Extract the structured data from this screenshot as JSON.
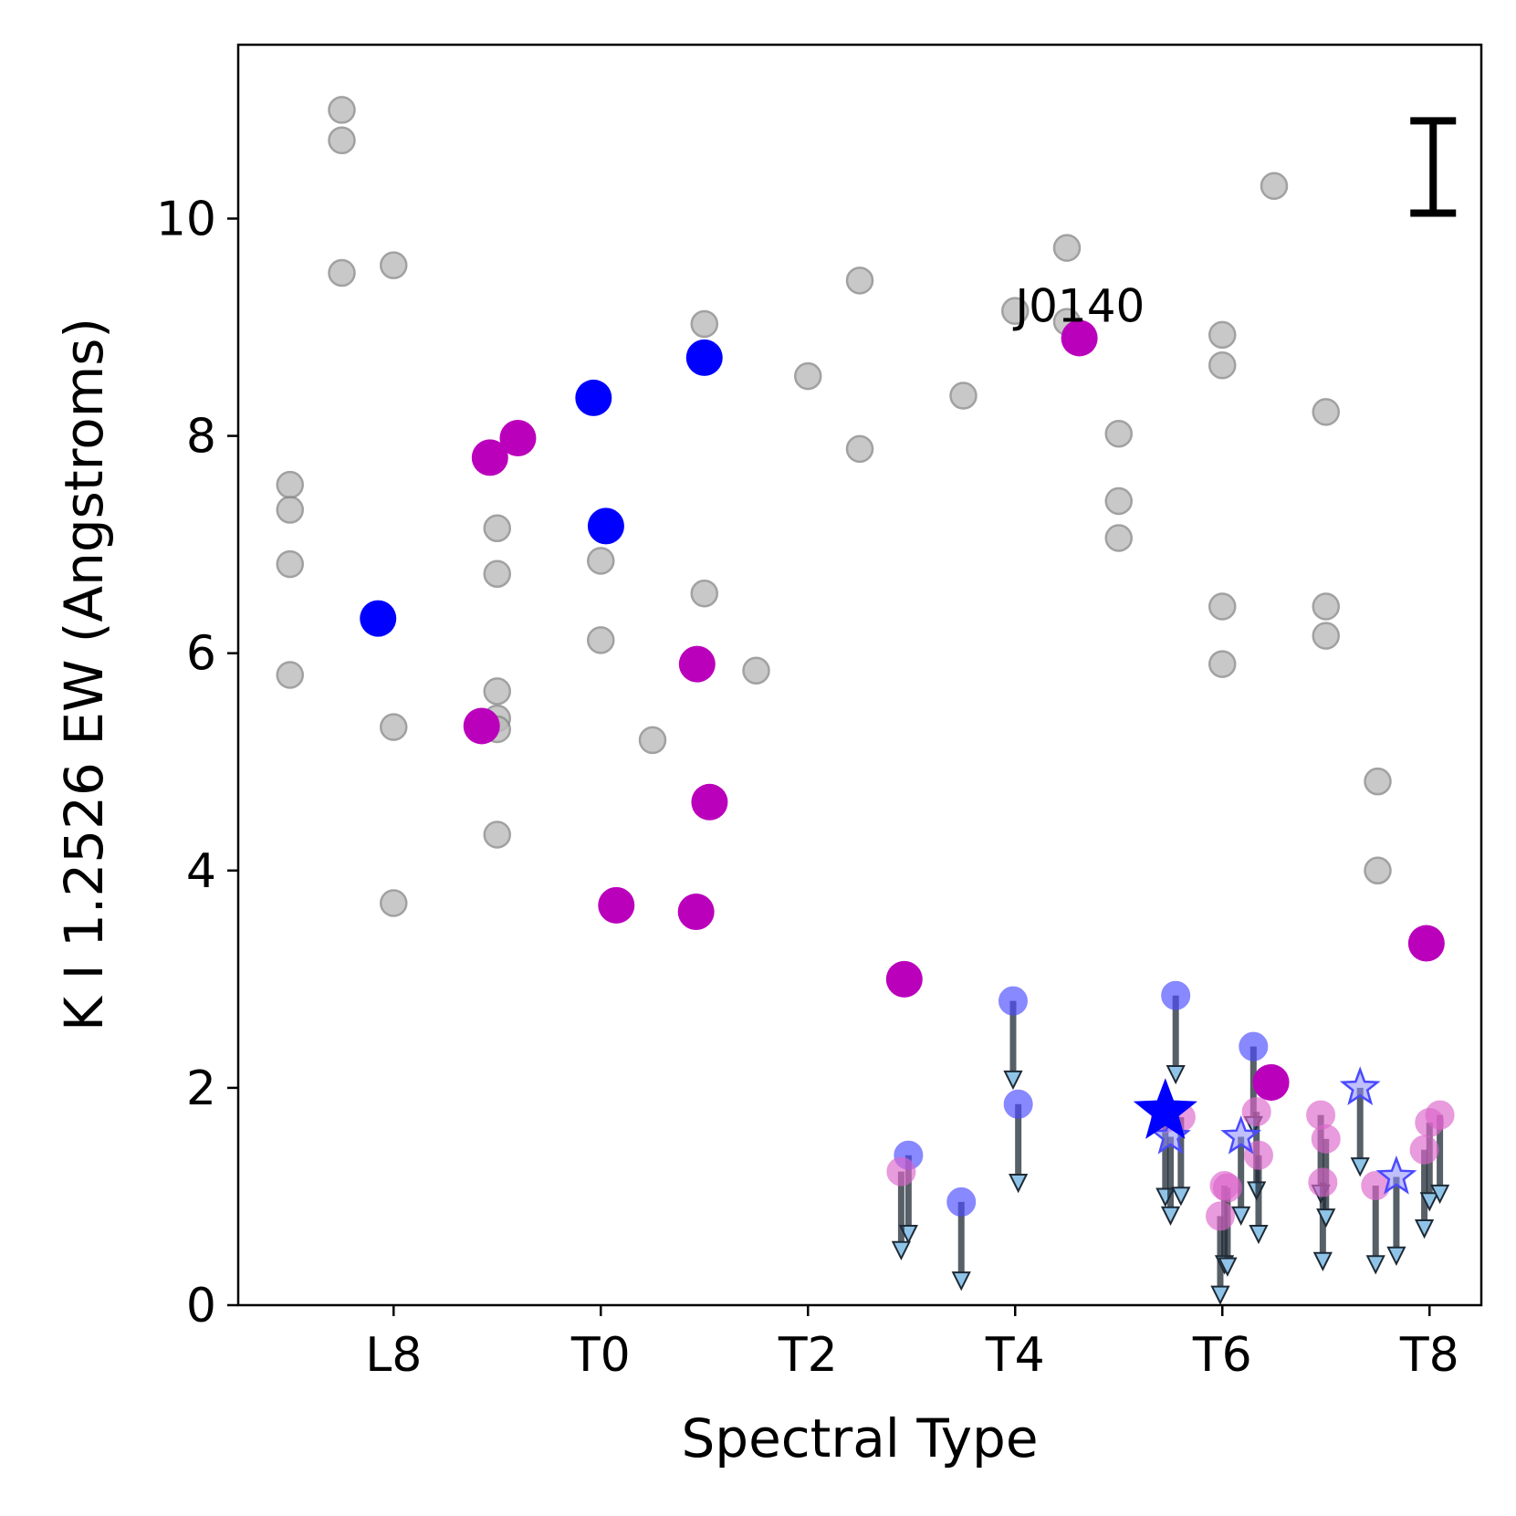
{
  "chart_data": {
    "type": "scatter",
    "title": "",
    "xlabel": "Spectral Type",
    "ylabel": "K I 1.2526 EW (Angstroms)",
    "xlim": [
      16.5,
      28.5
    ],
    "ylim": [
      0,
      11.6
    ],
    "x_ticks": [
      {
        "value": 18,
        "label": "L8"
      },
      {
        "value": 20,
        "label": "T0"
      },
      {
        "value": 22,
        "label": "T2"
      },
      {
        "value": 24,
        "label": "T4"
      },
      {
        "value": 26,
        "label": "T6"
      },
      {
        "value": 28,
        "label": "T8"
      }
    ],
    "y_ticks": [
      {
        "value": 0,
        "label": "0"
      },
      {
        "value": 2,
        "label": "2"
      },
      {
        "value": 4,
        "label": "4"
      },
      {
        "value": 6,
        "label": "6"
      },
      {
        "value": 8,
        "label": "8"
      },
      {
        "value": 10,
        "label": "10"
      }
    ],
    "annotations": [
      {
        "text": "J0140",
        "x": 24.6,
        "y": 9.2
      },
      {
        "text": "I",
        "x": 28.0,
        "y": 10.4
      }
    ],
    "error_bar": {
      "x": 28.0,
      "y_low": 10.05,
      "y_high": 10.9
    },
    "series": [
      {
        "name": "comparison",
        "marker": "circle",
        "color": "#bbbbbb",
        "points": [
          [
            17.0,
            7.55
          ],
          [
            17.0,
            7.32
          ],
          [
            17.0,
            6.82
          ],
          [
            17.0,
            5.8
          ],
          [
            17.5,
            11.0
          ],
          [
            17.5,
            10.72
          ],
          [
            17.5,
            9.5
          ],
          [
            18.0,
            9.57
          ],
          [
            18.0,
            5.32
          ],
          [
            18.0,
            3.7
          ],
          [
            19.0,
            7.15
          ],
          [
            19.0,
            6.73
          ],
          [
            19.0,
            5.65
          ],
          [
            19.0,
            5.4
          ],
          [
            19.0,
            5.3
          ],
          [
            19.0,
            4.33
          ],
          [
            20.0,
            6.85
          ],
          [
            20.0,
            6.12
          ],
          [
            20.5,
            5.2
          ],
          [
            21.0,
            9.03
          ],
          [
            21.0,
            6.55
          ],
          [
            21.5,
            5.84
          ],
          [
            22.0,
            8.55
          ],
          [
            22.5,
            9.43
          ],
          [
            22.5,
            7.88
          ],
          [
            23.5,
            8.37
          ],
          [
            24.0,
            9.15
          ],
          [
            24.5,
            9.73
          ],
          [
            24.5,
            9.05
          ],
          [
            25.0,
            8.02
          ],
          [
            25.0,
            7.4
          ],
          [
            25.0,
            7.06
          ],
          [
            26.0,
            8.93
          ],
          [
            26.0,
            8.65
          ],
          [
            26.0,
            6.43
          ],
          [
            26.0,
            5.9
          ],
          [
            26.5,
            10.3
          ],
          [
            27.0,
            8.22
          ],
          [
            27.0,
            6.43
          ],
          [
            27.0,
            6.16
          ],
          [
            27.5,
            4.82
          ],
          [
            27.5,
            4.0
          ]
        ]
      },
      {
        "name": "blue-detections",
        "marker": "circle",
        "color": "#0000ff",
        "points": [
          [
            17.85,
            6.32
          ],
          [
            19.93,
            8.35
          ],
          [
            20.05,
            7.17
          ],
          [
            21.0,
            8.72
          ]
        ]
      },
      {
        "name": "magenta-detections",
        "marker": "circle",
        "color": "#bb00bb",
        "points": [
          [
            18.85,
            5.33
          ],
          [
            18.93,
            7.8
          ],
          [
            19.2,
            7.98
          ],
          [
            20.15,
            3.68
          ],
          [
            20.92,
            3.62
          ],
          [
            20.93,
            5.9
          ],
          [
            21.05,
            4.63
          ],
          [
            22.93,
            3.0
          ],
          [
            24.62,
            8.9
          ],
          [
            26.47,
            2.05
          ],
          [
            27.97,
            3.33
          ]
        ]
      },
      {
        "name": "blue-upper-limits",
        "marker": "circle",
        "color": "#4a4aff",
        "upper_limit": true,
        "points": [
          [
            22.97,
            1.38
          ],
          [
            23.48,
            0.95
          ],
          [
            23.98,
            2.8
          ],
          [
            24.03,
            1.85
          ],
          [
            25.55,
            2.85
          ],
          [
            26.3,
            2.38
          ]
        ]
      },
      {
        "name": "magenta-upper-limits",
        "marker": "circle",
        "color": "#dd66cc",
        "upper_limit": true,
        "points": [
          [
            22.9,
            1.23
          ],
          [
            25.45,
            1.72
          ],
          [
            25.6,
            1.73
          ],
          [
            25.98,
            0.82
          ],
          [
            26.02,
            1.1
          ],
          [
            26.05,
            1.08
          ],
          [
            26.33,
            1.78
          ],
          [
            26.35,
            1.38
          ],
          [
            26.95,
            1.75
          ],
          [
            26.97,
            1.13
          ],
          [
            27.0,
            1.53
          ],
          [
            27.48,
            1.1
          ],
          [
            27.95,
            1.43
          ],
          [
            28.0,
            1.68
          ],
          [
            28.1,
            1.75
          ]
        ]
      },
      {
        "name": "blue-star-limits",
        "marker": "star",
        "color": "#4a4aff",
        "upper_limit": true,
        "points": [
          [
            26.18,
            1.55
          ],
          [
            27.33,
            2.0
          ],
          [
            27.68,
            1.18
          ],
          [
            25.5,
            1.55
          ]
        ]
      },
      {
        "name": "blue-star-large",
        "marker": "star-large",
        "color": "#0000ff",
        "points": [
          [
            25.45,
            1.78
          ]
        ]
      }
    ]
  }
}
